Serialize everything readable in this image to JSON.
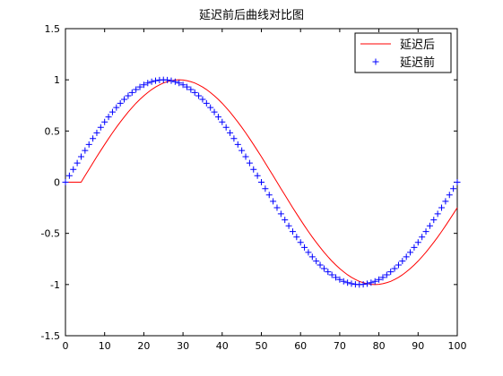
{
  "chart_data": {
    "type": "line",
    "title": "延迟前后曲线对比图",
    "xlabel": "",
    "ylabel": "",
    "xlim": [
      0,
      100
    ],
    "ylim": [
      -1.5,
      1.5
    ],
    "x_ticks": [
      0,
      10,
      20,
      30,
      40,
      50,
      60,
      70,
      80,
      90,
      100
    ],
    "y_ticks": [
      -1.5,
      -1,
      -0.5,
      0,
      0.5,
      1,
      1.5
    ],
    "x_tick_labels": [
      "0",
      "10",
      "20",
      "30",
      "40",
      "50",
      "60",
      "70",
      "80",
      "90",
      "100"
    ],
    "y_tick_labels": [
      "-1.5",
      "-1",
      "-0.5",
      "0",
      "0.5",
      "1",
      "1.5"
    ],
    "grid": false,
    "legend_position": "top-right",
    "series": [
      {
        "name": "延迟后",
        "style": "line",
        "color": "#ff0000",
        "x": [
          0,
          1,
          2,
          3,
          4,
          5,
          6,
          7,
          8,
          9,
          10,
          11,
          12,
          13,
          14,
          15,
          16,
          17,
          18,
          19,
          20,
          21,
          22,
          23,
          24,
          25,
          26,
          27,
          28,
          29,
          30,
          31,
          32,
          33,
          34,
          35,
          36,
          37,
          38,
          39,
          40,
          41,
          42,
          43,
          44,
          45,
          46,
          47,
          48,
          49,
          50,
          51,
          52,
          53,
          54,
          55,
          56,
          57,
          58,
          59,
          60,
          61,
          62,
          63,
          64,
          65,
          66,
          67,
          67.5,
          68,
          69,
          70,
          71,
          72,
          73,
          74,
          75,
          76,
          77,
          78,
          79,
          80,
          81,
          82,
          83,
          84,
          85,
          86,
          87,
          88,
          89,
          90,
          91,
          92,
          93,
          94,
          95,
          96,
          97,
          98,
          99,
          100
        ],
        "y": [
          0,
          0,
          0,
          0,
          0,
          0.063,
          0.125,
          0.187,
          0.249,
          0.309,
          0.368,
          0.426,
          0.482,
          0.536,
          0.588,
          0.637,
          0.685,
          0.729,
          0.771,
          0.809,
          0.844,
          0.876,
          0.905,
          0.93,
          0.951,
          0.969,
          0.982,
          0.992,
          0.998,
          1.0,
          0.998,
          0.992,
          0.982,
          0.969,
          0.951,
          0.93,
          0.905,
          0.876,
          0.844,
          0.809,
          0.771,
          0.729,
          0.685,
          0.637,
          0.588,
          0.536,
          0.482,
          0.426,
          0.368,
          0.309,
          0.249,
          0.187,
          0.125,
          0.063,
          0.0,
          -0.063,
          -0.125,
          -0.187,
          -0.249,
          -0.309,
          -0.368,
          -0.426,
          -0.482,
          -0.536,
          -0.588,
          -0.637,
          -0.685,
          -0.729,
          -0.75,
          -0.771,
          -0.809,
          -0.844,
          -0.876,
          -0.905,
          -0.93,
          -0.951,
          -0.969,
          -0.982,
          -0.992,
          -0.998,
          -1.0,
          -0.998,
          -0.992,
          -0.982,
          -0.969,
          -0.951,
          -0.93,
          -0.905,
          -0.876,
          -0.844,
          -0.809,
          -0.771,
          -0.729,
          -0.685,
          -0.637,
          -0.588,
          -0.536,
          -0.482,
          -0.426,
          -0.368,
          -0.309,
          -0.249
        ]
      },
      {
        "name": "延迟前",
        "style": "marker-plus",
        "color": "#0000ff",
        "x": [
          0,
          1,
          2,
          3,
          4,
          5,
          6,
          7,
          8,
          9,
          10,
          11,
          12,
          13,
          14,
          15,
          16,
          17,
          18,
          19,
          20,
          21,
          22,
          23,
          24,
          25,
          26,
          27,
          28,
          29,
          30,
          31,
          32,
          33,
          34,
          35,
          36,
          37,
          38,
          39,
          40,
          41,
          42,
          43,
          44,
          45,
          46,
          47,
          48,
          49,
          50,
          51,
          52,
          53,
          54,
          55,
          56,
          57,
          58,
          59,
          60,
          61,
          62,
          63,
          64,
          65,
          66,
          67,
          68,
          69,
          70,
          71,
          72,
          73,
          74,
          75,
          76,
          77,
          78,
          79,
          80,
          81,
          82,
          83,
          84,
          85,
          86,
          87,
          88,
          89,
          90,
          91,
          92,
          93,
          94,
          95,
          96,
          97,
          98,
          99,
          100
        ],
        "y": [
          0,
          0.063,
          0.125,
          0.187,
          0.249,
          0.309,
          0.368,
          0.426,
          0.482,
          0.536,
          0.588,
          0.637,
          0.685,
          0.729,
          0.771,
          0.809,
          0.844,
          0.876,
          0.905,
          0.93,
          0.951,
          0.969,
          0.982,
          0.992,
          0.998,
          1.0,
          0.998,
          0.992,
          0.982,
          0.969,
          0.951,
          0.93,
          0.905,
          0.876,
          0.844,
          0.809,
          0.771,
          0.729,
          0.685,
          0.637,
          0.588,
          0.536,
          0.482,
          0.426,
          0.368,
          0.309,
          0.249,
          0.187,
          0.125,
          0.063,
          0.0,
          -0.063,
          -0.125,
          -0.187,
          -0.249,
          -0.309,
          -0.368,
          -0.426,
          -0.482,
          -0.536,
          -0.588,
          -0.637,
          -0.685,
          -0.729,
          -0.771,
          -0.809,
          -0.844,
          -0.876,
          -0.905,
          -0.93,
          -0.951,
          -0.969,
          -0.982,
          -0.992,
          -0.998,
          -1.0,
          -0.998,
          -0.992,
          -0.982,
          -0.969,
          -0.951,
          -0.93,
          -0.905,
          -0.876,
          -0.844,
          -0.809,
          -0.771,
          -0.729,
          -0.685,
          -0.637,
          -0.588,
          -0.536,
          -0.482,
          -0.426,
          -0.368,
          -0.309,
          -0.249,
          -0.187,
          -0.125,
          -0.063,
          0.0
        ]
      }
    ]
  }
}
